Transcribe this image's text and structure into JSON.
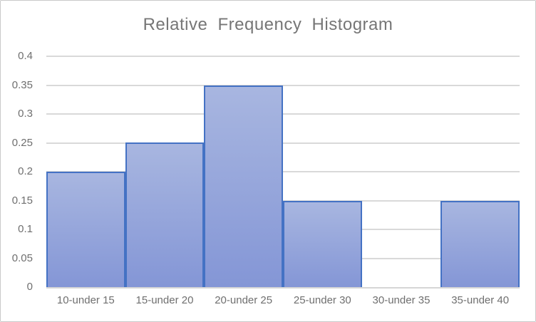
{
  "chart_data": {
    "type": "bar",
    "subtype": "histogram",
    "title": "Relative Frequency Histogram",
    "categories": [
      "10-under 15",
      "15-under 20",
      "20-under 25",
      "25-under 30",
      "30-under 35",
      "35-under 40"
    ],
    "values": [
      0.2,
      0.25,
      0.35,
      0.15,
      0,
      0.15
    ],
    "xlabel": "",
    "ylabel": "",
    "ylim": [
      0,
      0.4
    ],
    "ytick_step": 0.05,
    "ytick_labels": [
      "0",
      "0.05",
      "0.1",
      "0.15",
      "0.2",
      "0.25",
      "0.3",
      "0.35",
      "0.4"
    ],
    "grid": "horizontal",
    "legend": "none",
    "bar_gap": 0,
    "colors": {
      "bar_fill_top": "#a8b6e0",
      "bar_fill_bottom": "#8496d6",
      "bar_border": "#4472c4",
      "gridline": "#d9d9d9",
      "axis_line": "#d6d6d6",
      "title_text": "#767676",
      "tick_text": "#6f6f6f",
      "chart_border": "#c9c9c9",
      "background": "#ffffff"
    }
  }
}
